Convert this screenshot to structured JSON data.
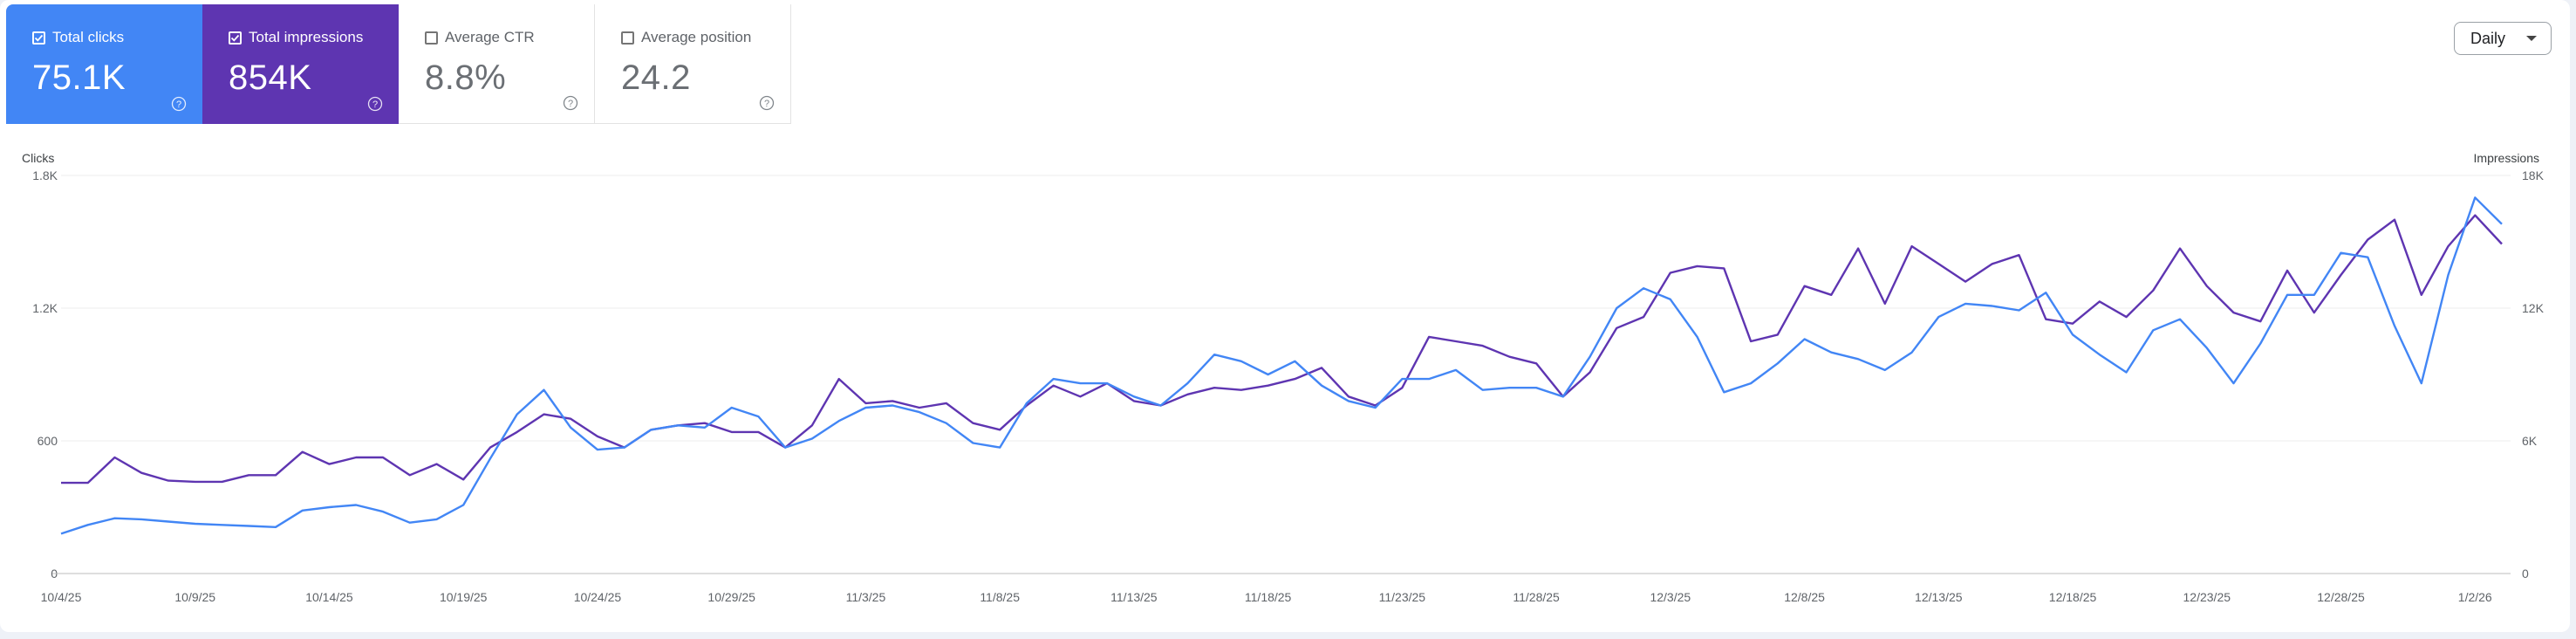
{
  "metrics": {
    "clicks": {
      "label": "Total clicks",
      "value": "75.1K",
      "checked": true,
      "color": "#4286f5"
    },
    "impressions": {
      "label": "Total impressions",
      "value": "854K",
      "checked": true,
      "color": "#5e35b1"
    },
    "ctr": {
      "label": "Average CTR",
      "value": "8.8%",
      "checked": false
    },
    "position": {
      "label": "Average position",
      "value": "24.2",
      "checked": false
    }
  },
  "granularity": {
    "selected": "Daily"
  },
  "chart_data": {
    "type": "line",
    "grid": true,
    "y_left": {
      "label": "Clicks",
      "ticks": [
        "0",
        "600",
        "1.2K",
        "1.8K"
      ],
      "range": [
        0,
        1800
      ]
    },
    "y_right": {
      "label": "Impressions",
      "ticks": [
        "0",
        "6K",
        "12K",
        "18K"
      ],
      "range": [
        0,
        18000
      ]
    },
    "x_tick_labels": [
      "10/4/25",
      "10/9/25",
      "10/14/25",
      "10/19/25",
      "10/24/25",
      "10/29/25",
      "11/3/25",
      "11/8/25",
      "11/13/25",
      "11/18/25",
      "11/23/25",
      "11/28/25",
      "12/3/25",
      "12/8/25",
      "12/13/25",
      "12/18/25",
      "12/23/25",
      "12/28/25",
      "1/2/26"
    ],
    "x": [
      "10/4/25",
      "10/5/25",
      "10/6/25",
      "10/7/25",
      "10/8/25",
      "10/9/25",
      "10/10/25",
      "10/11/25",
      "10/12/25",
      "10/13/25",
      "10/14/25",
      "10/15/25",
      "10/16/25",
      "10/17/25",
      "10/18/25",
      "10/19/25",
      "10/20/25",
      "10/21/25",
      "10/22/25",
      "10/23/25",
      "10/24/25",
      "10/25/25",
      "10/26/25",
      "10/27/25",
      "10/28/25",
      "10/29/25",
      "10/30/25",
      "10/31/25",
      "11/1/25",
      "11/2/25",
      "11/3/25",
      "11/4/25",
      "11/5/25",
      "11/6/25",
      "11/7/25",
      "11/8/25",
      "11/9/25",
      "11/10/25",
      "11/11/25",
      "11/12/25",
      "11/13/25",
      "11/14/25",
      "11/15/25",
      "11/16/25",
      "11/17/25",
      "11/18/25",
      "11/19/25",
      "11/20/25",
      "11/21/25",
      "11/22/25",
      "11/23/25",
      "11/24/25",
      "11/25/25",
      "11/26/25",
      "11/27/25",
      "11/28/25",
      "11/29/25",
      "11/30/25",
      "12/1/25",
      "12/2/25",
      "12/3/25",
      "12/4/25",
      "12/5/25",
      "12/6/25",
      "12/7/25",
      "12/8/25",
      "12/9/25",
      "12/10/25",
      "12/11/25",
      "12/12/25",
      "12/13/25",
      "12/14/25",
      "12/15/25",
      "12/16/25",
      "12/17/25",
      "12/18/25",
      "12/19/25",
      "12/20/25",
      "12/21/25",
      "12/22/25",
      "12/23/25",
      "12/24/25",
      "12/25/25",
      "12/26/25",
      "12/27/25",
      "12/28/25",
      "12/29/25",
      "12/30/25",
      "12/31/25",
      "1/1/26",
      "1/2/26",
      "1/3/26"
    ],
    "series": [
      {
        "name": "Total clicks",
        "axis": "left",
        "color": "#4286f5",
        "values": [
          180,
          220,
          250,
          245,
          235,
          225,
          220,
          215,
          210,
          285,
          300,
          310,
          280,
          230,
          245,
          310,
          520,
          720,
          830,
          660,
          560,
          570,
          650,
          670,
          660,
          750,
          710,
          570,
          610,
          690,
          750,
          760,
          730,
          680,
          590,
          570,
          770,
          880,
          860,
          860,
          800,
          760,
          860,
          990,
          960,
          900,
          960,
          850,
          780,
          750,
          880,
          880,
          920,
          830,
          840,
          840,
          800,
          980,
          1200,
          1290,
          1240,
          1070,
          820,
          860,
          950,
          1060,
          1000,
          970,
          920,
          1000,
          1160,
          1220,
          1210,
          1190,
          1270,
          1080,
          990,
          910,
          1100,
          1150,
          1020,
          860,
          1040,
          1260,
          1260,
          1450,
          1430,
          1120,
          860,
          1350,
          1700,
          1580
        ]
      },
      {
        "name": "Total impressions",
        "axis": "right",
        "color": "#5e35b1",
        "values": [
          4100,
          4100,
          5250,
          4550,
          4200,
          4150,
          4150,
          4450,
          4450,
          5500,
          4950,
          5250,
          5250,
          4450,
          4950,
          4250,
          5700,
          6400,
          7200,
          7000,
          6200,
          5700,
          6500,
          6700,
          6800,
          6400,
          6400,
          5700,
          6700,
          8800,
          7700,
          7800,
          7500,
          7700,
          6800,
          6500,
          7600,
          8500,
          8000,
          8600,
          7800,
          7600,
          8100,
          8400,
          8300,
          8500,
          8800,
          9300,
          8000,
          7600,
          8400,
          10700,
          10500,
          10300,
          9800,
          9500,
          8000,
          9100,
          11100,
          11600,
          13600,
          13900,
          13800,
          10500,
          10800,
          13000,
          12600,
          14700,
          12200,
          14800,
          14000,
          13200,
          14000,
          14400,
          11500,
          11300,
          12300,
          11600,
          12800,
          14700,
          13000,
          11800,
          11400,
          13700,
          11800,
          13500,
          15100,
          16000,
          12600,
          14800,
          16200,
          14900
        ]
      }
    ]
  }
}
